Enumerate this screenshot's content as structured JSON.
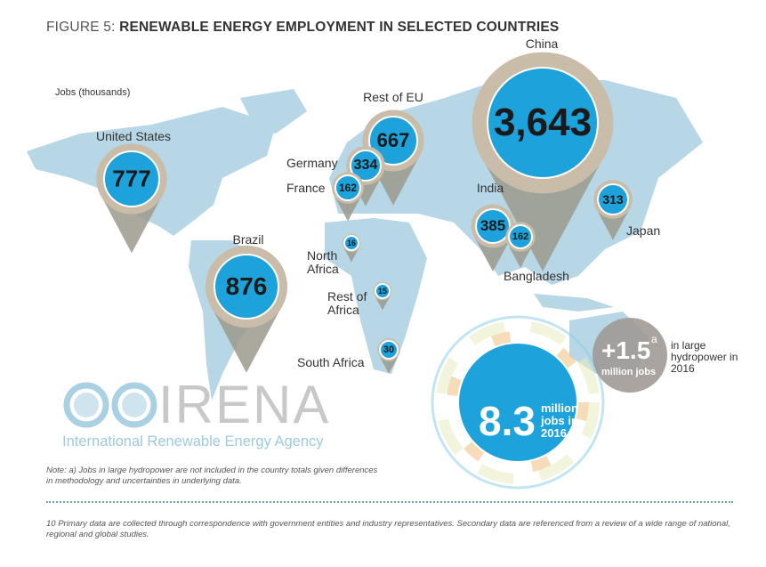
{
  "title": {
    "prefix": "FIGURE 5: ",
    "main": "RENEWABLE ENERGY EMPLOYMENT IN SELECTED COUNTRIES"
  },
  "units": "Jobs (thousands)",
  "colors": {
    "bubble": "#1ea2dc",
    "ring": "#c9bca8",
    "tail": "#9c9a8c",
    "land": "#b7d6e6"
  },
  "chart_data": {
    "type": "map-bubbles",
    "unit": "Jobs (thousands)",
    "points": [
      {
        "name": "China",
        "value": "3,643"
      },
      {
        "name": "Brazil",
        "value": "876"
      },
      {
        "name": "United States",
        "value": "777"
      },
      {
        "name": "Rest of EU",
        "value": "667"
      },
      {
        "name": "India",
        "value": "385"
      },
      {
        "name": "Germany",
        "value": "334"
      },
      {
        "name": "Japan",
        "value": "313"
      },
      {
        "name": "France",
        "value": "162"
      },
      {
        "name": "Bangladesh",
        "value": "162"
      },
      {
        "name": "South Africa",
        "value": "30"
      },
      {
        "name": "North Africa",
        "value": "16"
      },
      {
        "name": "Rest of Africa",
        "value": "15"
      }
    ]
  },
  "total": {
    "value": "8.3",
    "text": "million jobs in 2016"
  },
  "hydro": {
    "value": "+1.5",
    "sup": "a",
    "unit": "million jobs",
    "text": "in large hydropower in 2016"
  },
  "logo": {
    "name": "IRENA",
    "subtitle": "International Renewable Energy Agency"
  },
  "note": "Note: a) Jobs in large hydropower are not included in the country totals given differences in methodology and uncertainties in underlying data.",
  "footnote": "10 Primary data are collected through correspondence with government entities and industry representatives. Secondary data are referenced from a review of a wide range of national, regional and global studies."
}
